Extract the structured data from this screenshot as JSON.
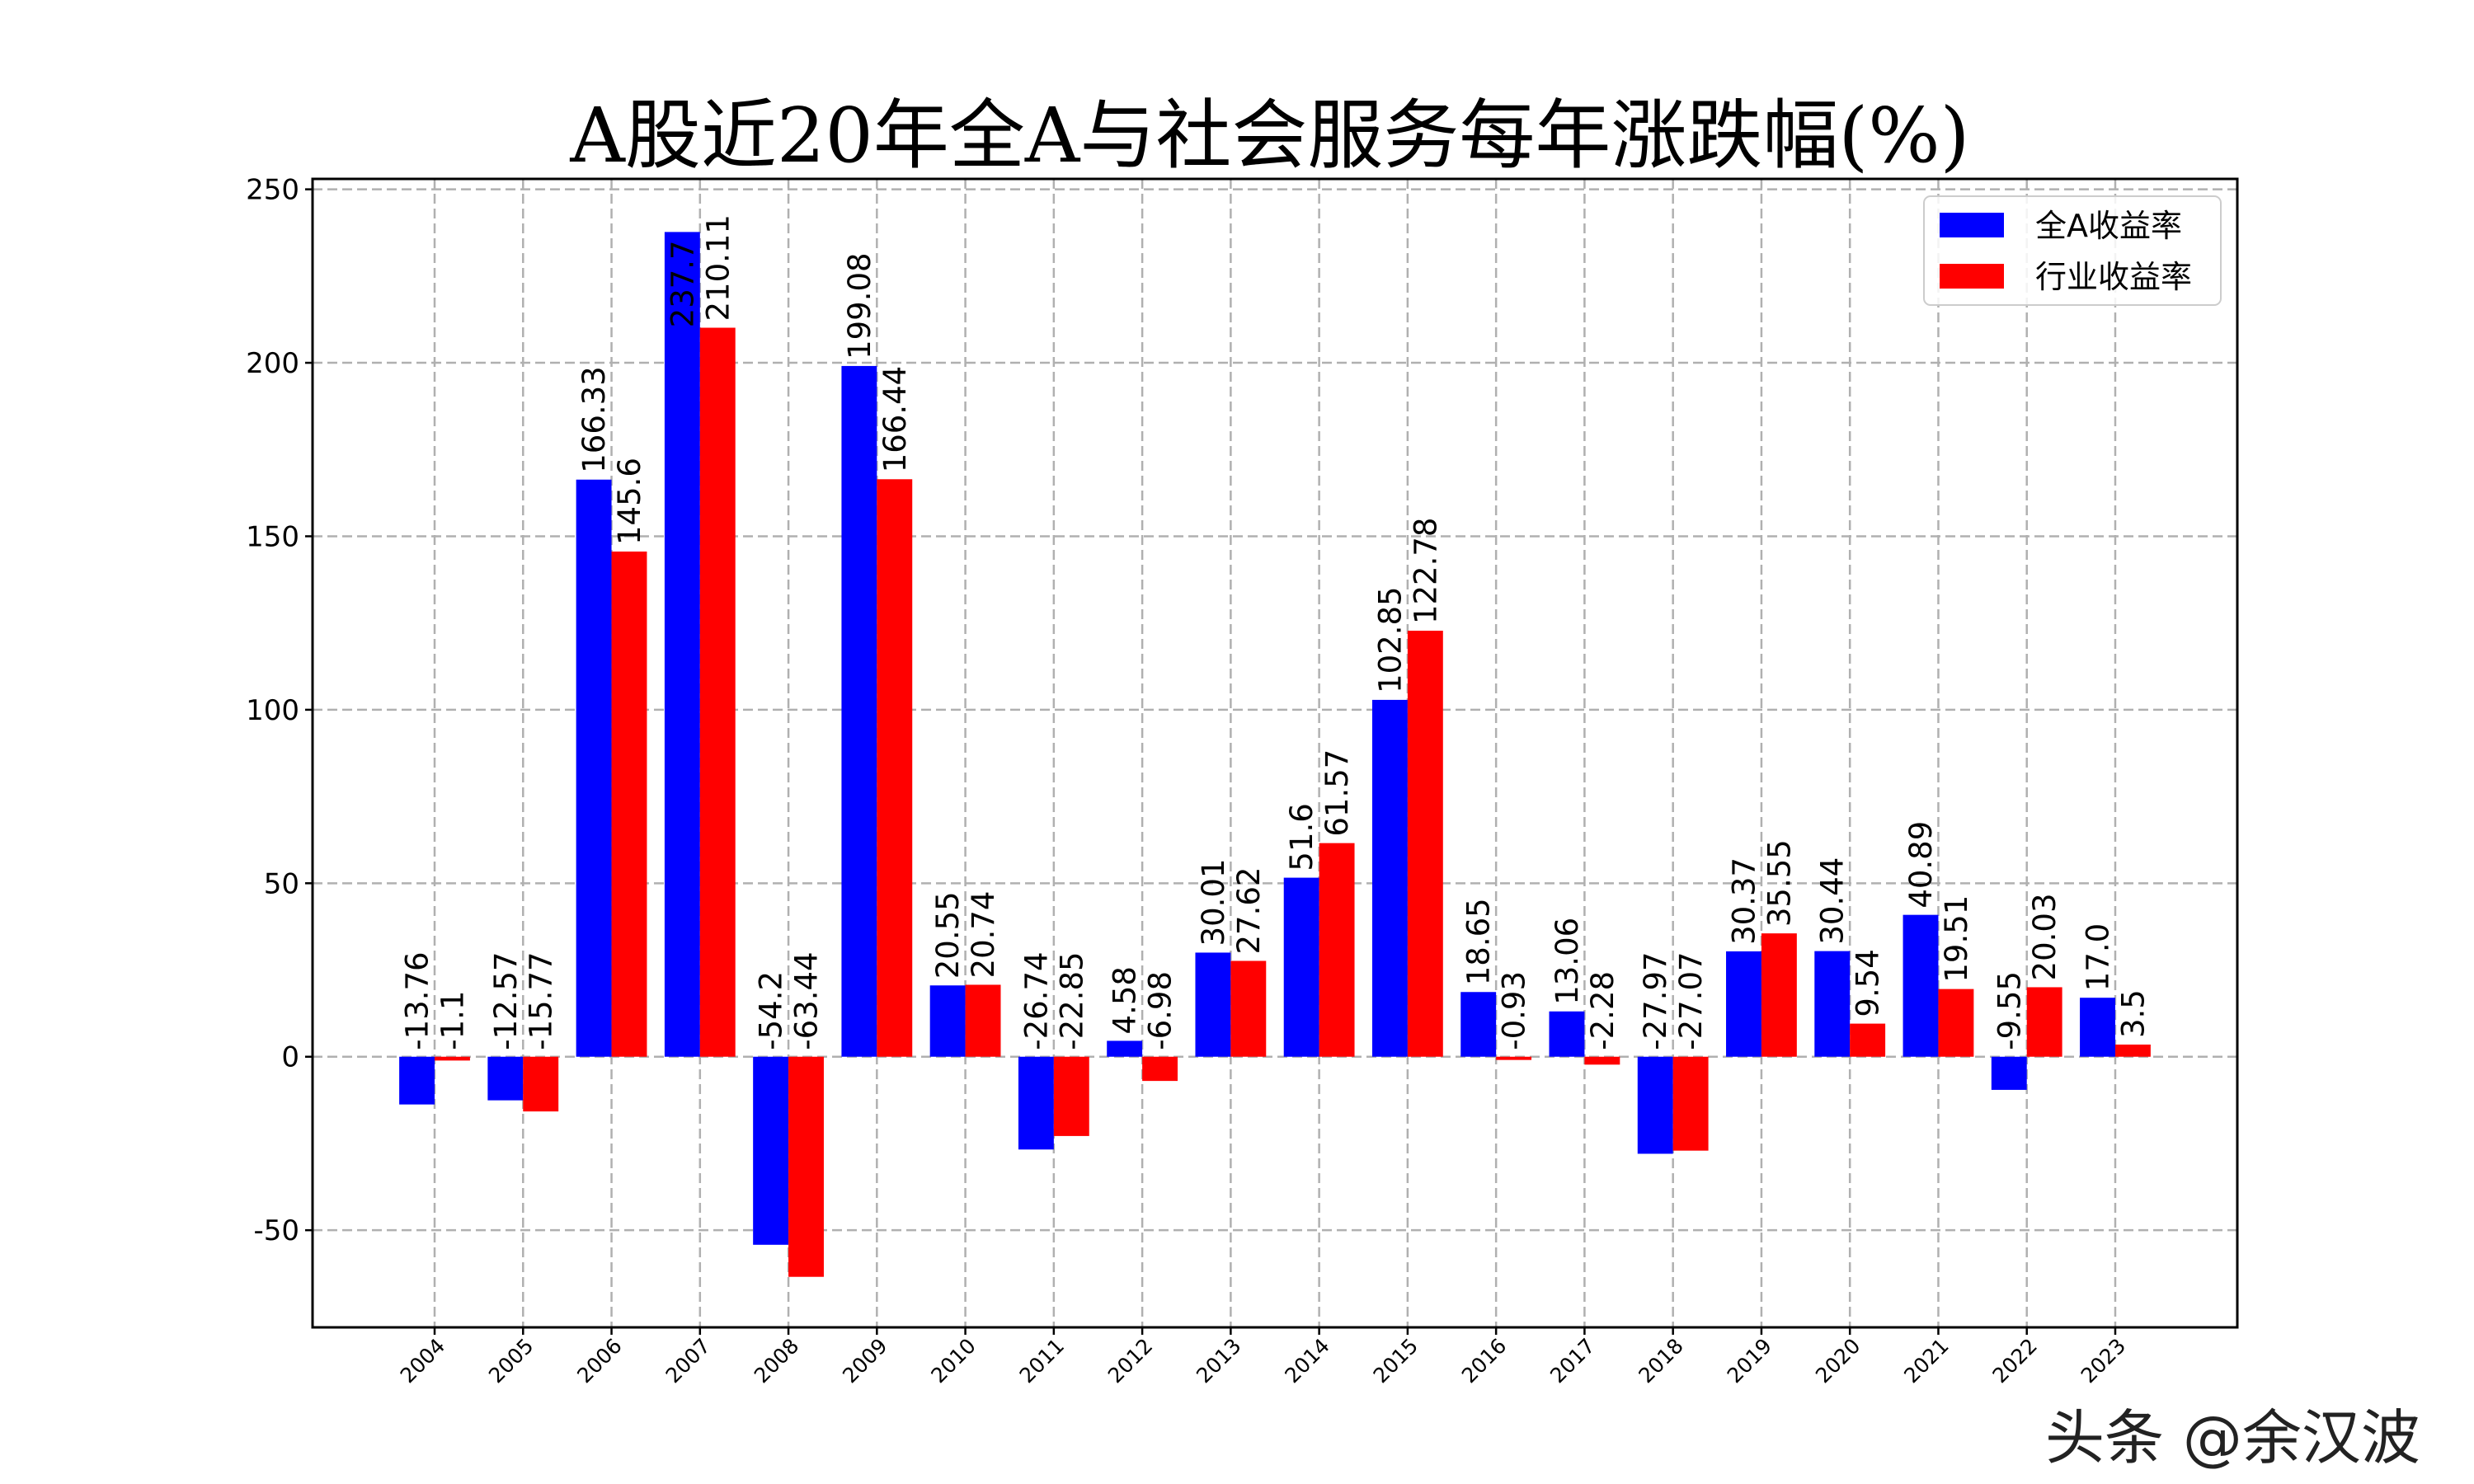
{
  "chart_data": {
    "type": "bar",
    "title": "A股近20年全A与社会服务每年涨跌幅(%)",
    "xlabel": "",
    "ylabel": "",
    "categories": [
      "2004",
      "2005",
      "2006",
      "2007",
      "2008",
      "2009",
      "2010",
      "2011",
      "2012",
      "2013",
      "2014",
      "2015",
      "2016",
      "2017",
      "2018",
      "2019",
      "2020",
      "2021",
      "2022",
      "2023"
    ],
    "series": [
      {
        "name": "全A收益率",
        "color": "#0000ff",
        "values": [
          -13.76,
          -12.57,
          166.33,
          237.7,
          -54.2,
          199.08,
          20.55,
          -26.74,
          4.58,
          30.01,
          51.6,
          102.85,
          18.65,
          13.06,
          -27.97,
          30.37,
          30.44,
          40.89,
          -9.55,
          17.0
        ]
      },
      {
        "name": "行业收益率",
        "color": "#ff0000",
        "values": [
          -1.1,
          -15.77,
          145.6,
          210.11,
          -63.44,
          166.44,
          20.74,
          -22.85,
          -6.98,
          27.62,
          61.57,
          122.78,
          -0.93,
          -2.28,
          -27.07,
          35.55,
          9.54,
          19.51,
          20.03,
          3.5
        ]
      }
    ],
    "labels": [
      [
        "-13.76",
        "-12.57",
        "166.33",
        "237.7",
        "-54.2",
        "199.08",
        "20.55",
        "-26.74",
        "4.58",
        "30.01",
        "51.6",
        "102.85",
        "18.65",
        "13.06",
        "-27.97",
        "30.37",
        "30.44",
        "40.89",
        "-9.55",
        "17.0"
      ],
      [
        "-1.1",
        "-15.77",
        "145.6",
        "210.11",
        "-63.44",
        "166.44",
        "20.74",
        "-22.85",
        "-6.98",
        "27.62",
        "61.57",
        "122.78",
        "-0.93",
        "-2.28",
        "-27.07",
        "35.55",
        "9.54",
        "19.51",
        "20.03",
        "3.5"
      ]
    ],
    "yticks": [
      -50,
      0,
      50,
      100,
      150,
      200,
      250
    ],
    "ylim": [
      -78,
      253
    ],
    "grid": true,
    "legend_position": "top-right"
  },
  "watermark": "头条 @余汉波"
}
